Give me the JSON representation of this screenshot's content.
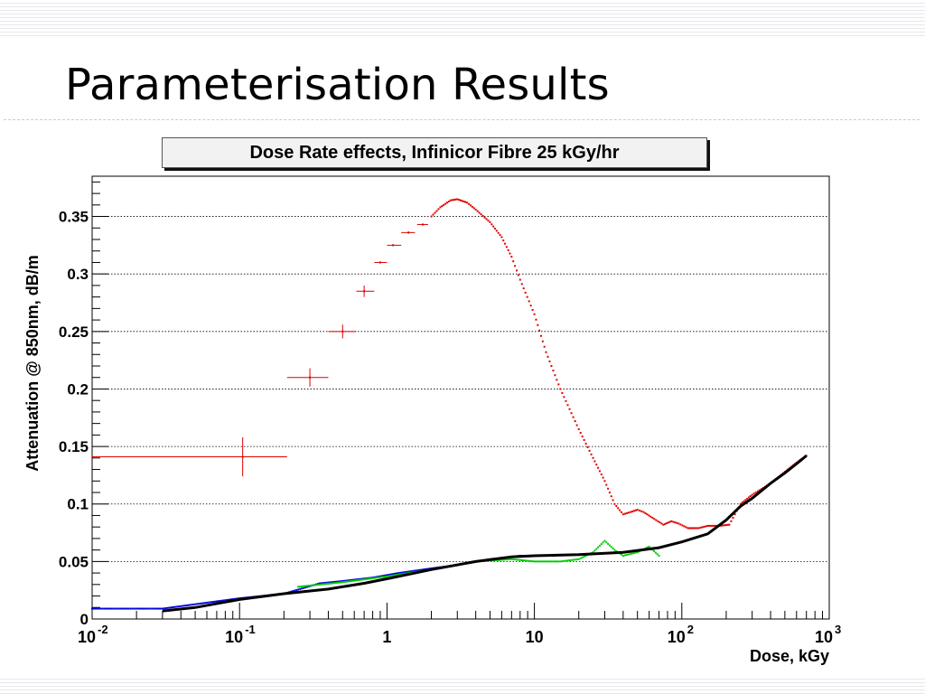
{
  "slide": {
    "title": "Parameterisation Results"
  },
  "chart_data": {
    "type": "scatter",
    "title": "Dose Rate effects, Infinicor Fibre 25 kGy/hr",
    "xlabel": "Dose, kGy",
    "ylabel": "Attenuation @ 850nm, dB/m",
    "xscale": "log",
    "xlim": [
      0.01,
      1000
    ],
    "ylim": [
      0,
      0.385
    ],
    "grid": "horizontal dotted",
    "x_ticks": [
      {
        "base": "10",
        "exp": "-2"
      },
      {
        "base": "10",
        "exp": "-1"
      },
      {
        "base": "1",
        "exp": ""
      },
      {
        "base": "10",
        "exp": ""
      },
      {
        "base": "10",
        "exp": "2"
      },
      {
        "base": "10",
        "exp": "3"
      }
    ],
    "y_ticks": [
      "0",
      "0.05",
      "0.1",
      "0.15",
      "0.2",
      "0.25",
      "0.3",
      "0.35"
    ],
    "series": [
      {
        "color": "#e00000",
        "style": "points with error bars",
        "errorbar_points": [
          {
            "x": 0.105,
            "y": 0.141,
            "xerr": [
              0.01,
              0.21
            ],
            "yerr": 0.017
          },
          {
            "x": 0.3,
            "y": 0.21,
            "xerr": [
              0.21,
              0.4
            ],
            "yerr": 0.008
          },
          {
            "x": 0.5,
            "y": 0.25,
            "xerr": [
              0.4,
              0.62
            ],
            "yerr": 0.006
          },
          {
            "x": 0.7,
            "y": 0.285,
            "xerr": [
              0.62,
              0.82
            ],
            "yerr": 0.005
          },
          {
            "x": 0.9,
            "y": 0.31,
            "xerr": [
              0.82,
              1.0
            ],
            "yerr": 0
          },
          {
            "x": 1.1,
            "y": 0.325,
            "xerr": [
              1.0,
              1.25
            ],
            "yerr": 0
          },
          {
            "x": 1.4,
            "y": 0.336,
            "xerr": [
              1.25,
              1.55
            ],
            "yerr": 0
          },
          {
            "x": 1.75,
            "y": 0.343,
            "xerr": [
              1.6,
              1.9
            ],
            "yerr": 0
          }
        ],
        "points": [
          [
            2.0,
            0.35
          ],
          [
            2.3,
            0.358
          ],
          [
            2.7,
            0.364
          ],
          [
            3.0,
            0.365
          ],
          [
            3.5,
            0.362
          ],
          [
            4.0,
            0.356
          ],
          [
            5.0,
            0.345
          ],
          [
            6.0,
            0.332
          ],
          [
            7.0,
            0.315
          ],
          [
            8.0,
            0.295
          ],
          [
            10.0,
            0.265
          ],
          [
            12.0,
            0.232
          ],
          [
            15.0,
            0.2
          ],
          [
            20.0,
            0.165
          ],
          [
            25.0,
            0.14
          ],
          [
            30.0,
            0.12
          ],
          [
            35.0,
            0.1
          ],
          [
            40.0,
            0.091
          ],
          [
            45.0,
            0.093
          ],
          [
            50.0,
            0.095
          ],
          [
            55.0,
            0.093
          ],
          [
            65.0,
            0.087
          ],
          [
            75.0,
            0.082
          ],
          [
            85.0,
            0.085
          ],
          [
            95.0,
            0.083
          ],
          [
            110.0,
            0.079
          ],
          [
            130.0,
            0.079
          ],
          [
            150.0,
            0.081
          ],
          [
            180.0,
            0.081
          ],
          [
            210.0,
            0.082
          ],
          [
            250.0,
            0.1
          ],
          [
            300.0,
            0.108
          ],
          [
            400.0,
            0.118
          ],
          [
            500.0,
            0.128
          ],
          [
            600.0,
            0.136
          ],
          [
            700.0,
            0.142
          ]
        ]
      },
      {
        "color": "#0000dd",
        "style": "points",
        "points": [
          [
            0.01,
            0.009
          ],
          [
            0.03,
            0.009
          ],
          [
            0.1,
            0.018
          ],
          [
            0.2,
            0.022
          ],
          [
            0.35,
            0.031
          ],
          [
            0.5,
            0.033
          ],
          [
            0.8,
            0.036
          ],
          [
            1.2,
            0.04
          ],
          [
            2.0,
            0.044
          ],
          [
            3.0,
            0.047
          ],
          [
            5.0,
            0.052
          ],
          [
            8.0,
            0.055
          ],
          [
            12.0,
            0.055
          ],
          [
            18.0,
            0.056
          ]
        ]
      },
      {
        "color": "#00cc00",
        "style": "points",
        "points": [
          [
            0.25,
            0.028
          ],
          [
            0.5,
            0.032
          ],
          [
            1.0,
            0.037
          ],
          [
            2.0,
            0.043
          ],
          [
            4.0,
            0.05
          ],
          [
            7.0,
            0.052
          ],
          [
            10.0,
            0.05
          ],
          [
            15.0,
            0.05
          ],
          [
            20.0,
            0.052
          ],
          [
            25.0,
            0.058
          ],
          [
            30.0,
            0.068
          ],
          [
            35.0,
            0.06
          ],
          [
            40.0,
            0.055
          ],
          [
            50.0,
            0.058
          ],
          [
            60.0,
            0.063
          ],
          [
            70.0,
            0.055
          ]
        ]
      },
      {
        "color": "#000000",
        "style": "line",
        "points": [
          [
            0.03,
            0.007
          ],
          [
            0.05,
            0.01
          ],
          [
            0.1,
            0.017
          ],
          [
            0.2,
            0.022
          ],
          [
            0.4,
            0.026
          ],
          [
            0.7,
            0.031
          ],
          [
            1.0,
            0.035
          ],
          [
            2.0,
            0.043
          ],
          [
            4.0,
            0.05
          ],
          [
            7.0,
            0.054
          ],
          [
            10.0,
            0.055
          ],
          [
            20.0,
            0.056
          ],
          [
            40.0,
            0.058
          ],
          [
            70.0,
            0.062
          ],
          [
            100.0,
            0.067
          ],
          [
            150.0,
            0.074
          ],
          [
            200.0,
            0.086
          ],
          [
            250.0,
            0.098
          ],
          [
            300.0,
            0.105
          ],
          [
            400.0,
            0.118
          ],
          [
            500.0,
            0.127
          ],
          [
            600.0,
            0.135
          ],
          [
            700.0,
            0.142
          ]
        ]
      }
    ]
  }
}
